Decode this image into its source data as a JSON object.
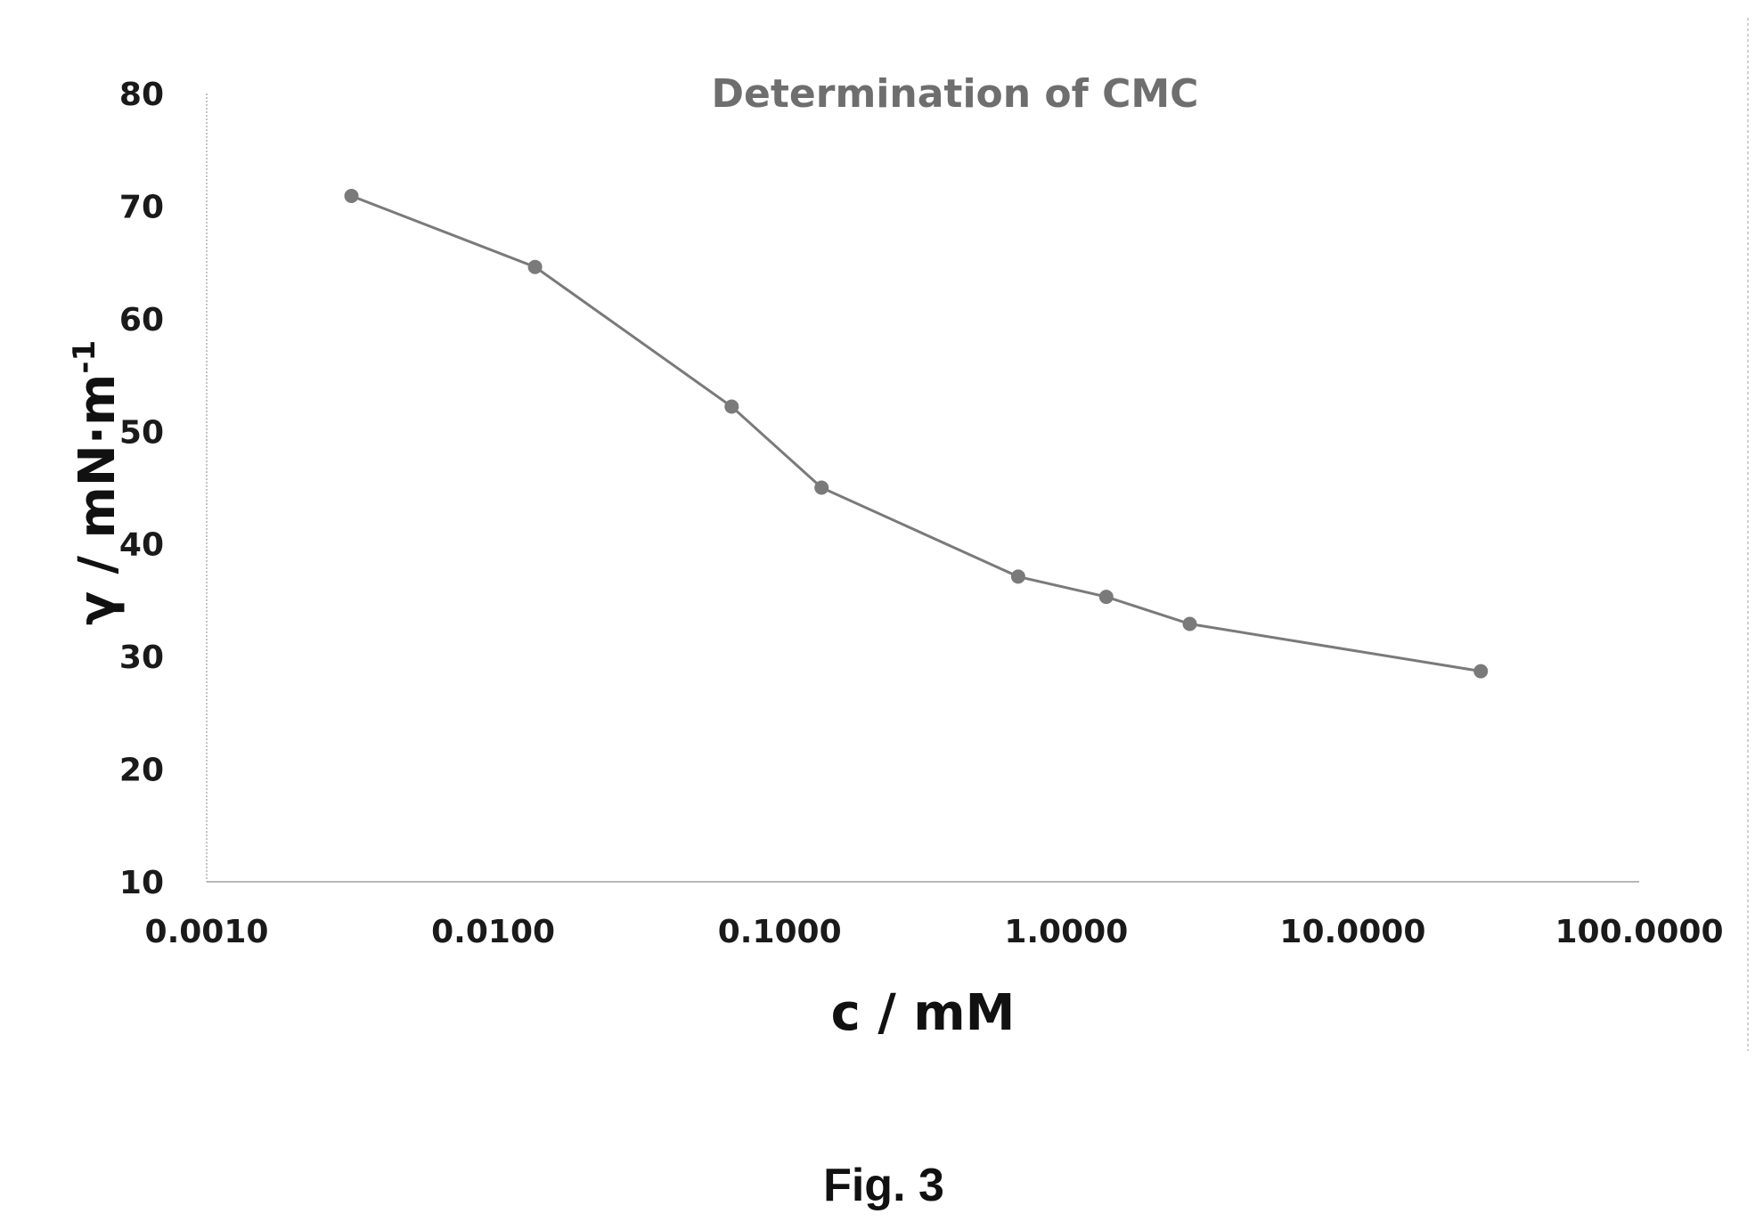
{
  "figure": {
    "caption": "Fig. 3"
  },
  "chart_data": {
    "type": "line",
    "title": "Determination of CMC",
    "xlabel": "c / mM",
    "ylabel": "γ / mN·m",
    "ylabel_superscript": "-1",
    "x_scale": "log",
    "xlim": [
      0.001,
      100
    ],
    "ylim": [
      10,
      80
    ],
    "x_ticks": [
      "0.0010",
      "0.0100",
      "0.1000",
      "1.0000",
      "10.0000",
      "100.0000"
    ],
    "y_ticks": [
      "10",
      "20",
      "30",
      "40",
      "50",
      "60",
      "70",
      "80"
    ],
    "grid": false,
    "legend": "none",
    "series": [
      {
        "color": "#7a7a7a",
        "marker": "circle",
        "x": [
          0.0032,
          0.014,
          0.068,
          0.14,
          0.68,
          1.38,
          2.7,
          28
        ],
        "y": [
          70.9,
          64.6,
          52.2,
          45.0,
          37.1,
          35.3,
          32.9,
          28.7
        ]
      }
    ]
  }
}
